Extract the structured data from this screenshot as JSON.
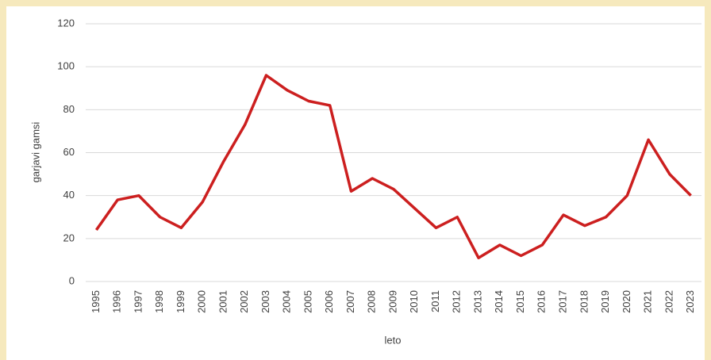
{
  "chart_data": {
    "type": "line",
    "x_label": "leto",
    "y_label": "garjavi gamsi",
    "categories": [
      "1995",
      "1996",
      "1997",
      "1998",
      "1999",
      "2000",
      "2001",
      "2002",
      "2003",
      "2004",
      "2005",
      "2006",
      "2007",
      "2008",
      "2009",
      "2010",
      "2011",
      "2012",
      "2013",
      "2014",
      "2015",
      "2016",
      "2017",
      "2018",
      "2019",
      "2020",
      "2021",
      "2022",
      "2023"
    ],
    "series": [
      {
        "color": "#cc1f1f",
        "values": [
          24,
          38,
          40,
          30,
          25,
          37,
          56,
          73,
          96,
          89,
          84,
          82,
          42,
          48,
          43,
          34,
          25,
          30,
          11,
          17,
          12,
          17,
          31,
          26,
          30,
          40,
          66,
          50,
          40
        ]
      }
    ],
    "ylim": [
      0,
      120
    ],
    "yticks": [
      0,
      20,
      40,
      60,
      80,
      100,
      120
    ],
    "grid": true
  }
}
